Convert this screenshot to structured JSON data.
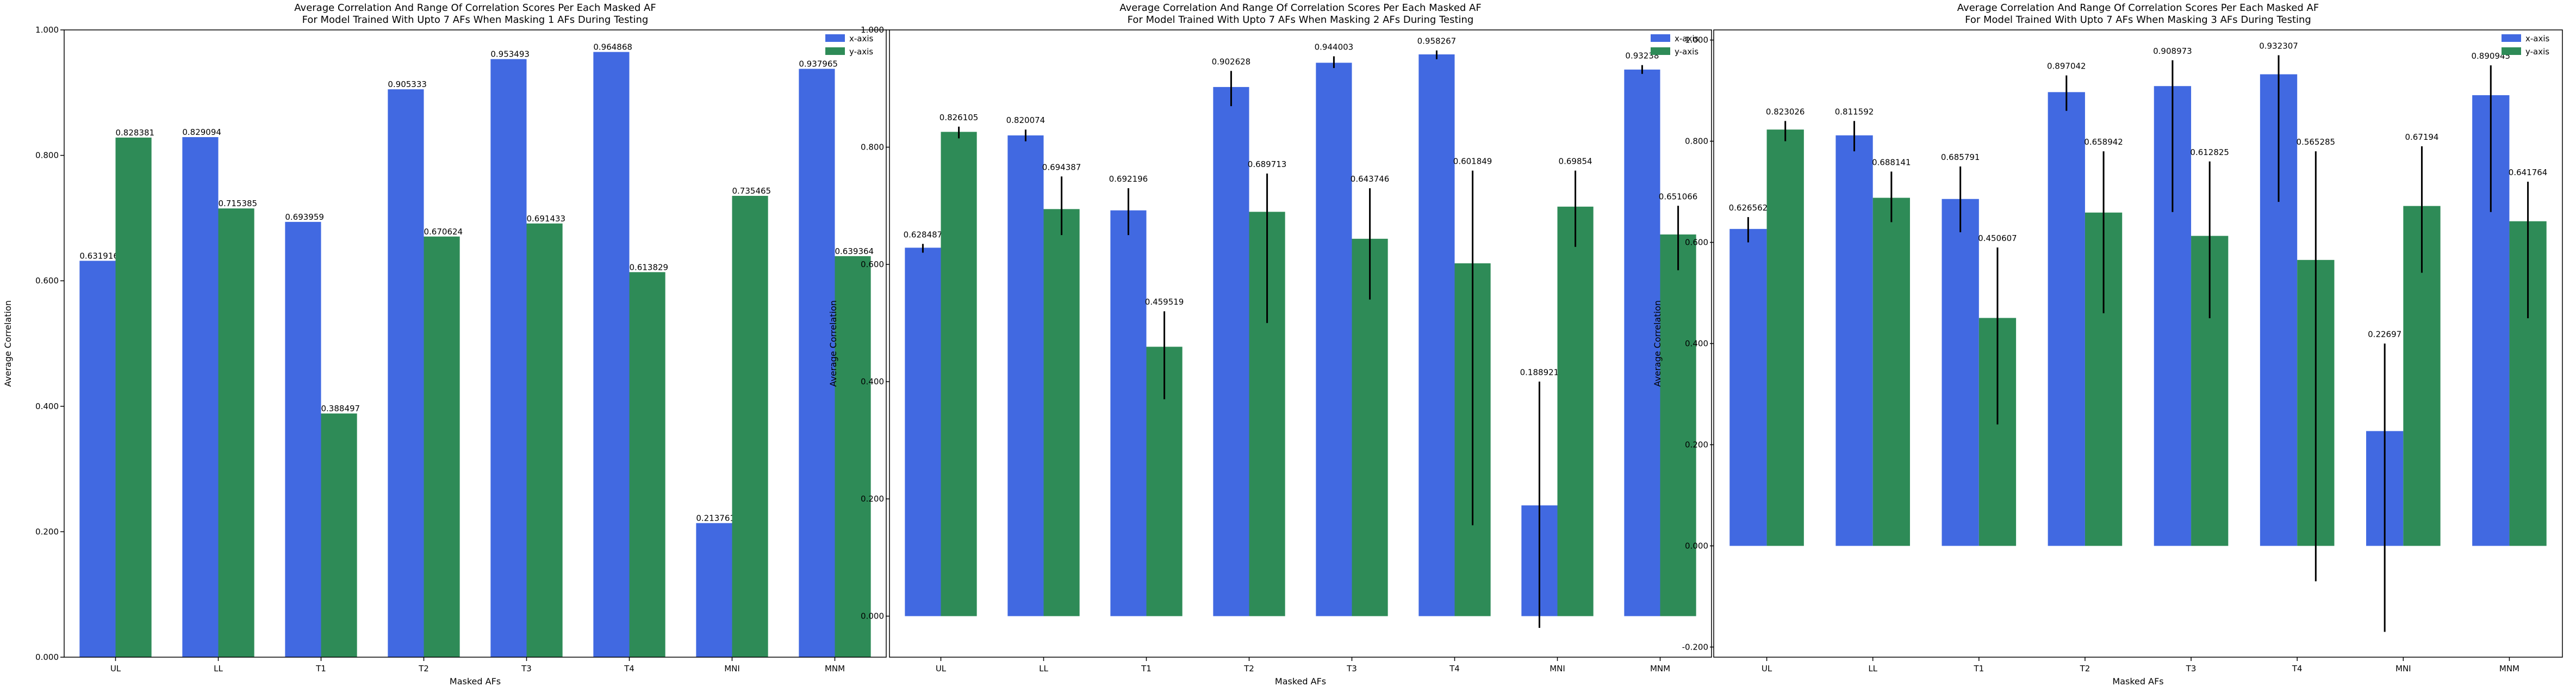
{
  "colors": {
    "x_axis": "#4169E1",
    "y_axis": "#2E8B57",
    "error_bar": "#000000"
  },
  "chart_data": [
    {
      "type": "bar",
      "title": "Average Correlation And Range Of Correlation Scores Per Each Masked AF\nFor Model Trained With Upto 7 AFs When Masking 1 AFs During Testing",
      "xlabel": "Masked AFs",
      "ylabel": "Average Correlation",
      "ylim": [
        0.0,
        1.0
      ],
      "yticks": [
        0.0,
        0.2,
        0.4,
        0.6,
        0.8,
        1.0
      ],
      "ytick_labels": [
        "0.000",
        "0.200",
        "0.400",
        "0.600",
        "0.800",
        "1.000"
      ],
      "categories": [
        "UL",
        "LL",
        "T1",
        "T2",
        "T3",
        "T4",
        "MNI",
        "MNM"
      ],
      "legend_position": "top-right",
      "series": [
        {
          "name": "x-axis",
          "values": [
            0.631916,
            0.829094,
            0.693959,
            0.905333,
            0.953493,
            0.964868,
            0.213761,
            0.937965
          ],
          "labels": [
            "0.631916",
            "0.829094",
            "0.693959",
            "0.905333",
            "0.953493",
            "0.964868",
            "0.213761",
            "0.937965"
          ]
        },
        {
          "name": "y-axis",
          "values": [
            0.828381,
            0.715385,
            0.388497,
            0.670624,
            0.691433,
            0.613829,
            0.735465,
            0.639364
          ],
          "labels": [
            "0.828381",
            "0.715385",
            "0.388497",
            "0.670624",
            "0.691433",
            "0.613829",
            "0.735465",
            "0.639364"
          ]
        }
      ]
    },
    {
      "type": "bar",
      "title": "Average Correlation And Range Of Correlation Scores Per Each Masked AF\nFor Model Trained With Upto 7 AFs When Masking 2 AFs During Testing",
      "xlabel": "Masked AFs",
      "ylabel": "Average Correlation",
      "ylim": [
        -0.07,
        1.0
      ],
      "yticks": [
        0.0,
        0.2,
        0.4,
        0.6,
        0.8,
        1.0
      ],
      "ytick_labels": [
        "0.000",
        "0.200",
        "0.400",
        "0.600",
        "0.800",
        "1.000"
      ],
      "categories": [
        "UL",
        "LL",
        "T1",
        "T2",
        "T3",
        "T4",
        "MNI",
        "MNM"
      ],
      "legend_position": "top-right",
      "series": [
        {
          "name": "x-axis",
          "values": [
            0.628487,
            0.820074,
            0.692196,
            0.902628,
            0.944003,
            0.958267,
            0.188921,
            0.93238
          ],
          "labels": [
            "0.628487",
            "0.820074",
            "0.692196",
            "0.902628",
            "0.944003",
            "0.958267",
            "0.188921",
            "0.93238"
          ],
          "err_low": [
            0.62,
            0.81,
            0.65,
            0.87,
            0.935,
            0.95,
            -0.02,
            0.925
          ],
          "err_high": [
            0.635,
            0.83,
            0.73,
            0.93,
            0.955,
            0.965,
            0.4,
            0.94
          ]
        },
        {
          "name": "y-axis",
          "values": [
            0.826105,
            0.694387,
            0.459519,
            0.689713,
            0.643746,
            0.601849,
            0.69854,
            0.651066
          ],
          "labels": [
            "0.826105",
            "0.694387",
            "0.459519",
            "0.689713",
            "0.643746",
            "0.601849",
            "0.69854",
            "0.651066"
          ],
          "err_low": [
            0.815,
            0.65,
            0.37,
            0.5,
            0.54,
            0.155,
            0.63,
            0.59
          ],
          "err_high": [
            0.835,
            0.75,
            0.52,
            0.755,
            0.73,
            0.76,
            0.76,
            0.7
          ]
        }
      ]
    },
    {
      "type": "bar",
      "title": "Average Correlation And Range Of Correlation Scores Per Each Masked AF\nFor Model Trained With Upto 7 AFs When Masking 3 AFs During Testing",
      "xlabel": "Masked AFs",
      "ylabel": "Average Correlation",
      "ylim": [
        -0.22,
        1.02
      ],
      "yticks": [
        -0.2,
        0.0,
        0.2,
        0.4,
        0.6,
        0.8,
        1.0
      ],
      "ytick_labels": [
        "-0.200",
        "0.000",
        "0.200",
        "0.400",
        "0.600",
        "0.800",
        "1.000"
      ],
      "categories": [
        "UL",
        "LL",
        "T1",
        "T2",
        "T3",
        "T4",
        "MNI",
        "MNM"
      ],
      "legend_position": "top-right",
      "series": [
        {
          "name": "x-axis",
          "values": [
            0.626562,
            0.811592,
            0.685791,
            0.897042,
            0.908973,
            0.932307,
            0.22697,
            0.890945
          ],
          "labels": [
            "0.626562",
            "0.811592",
            "0.685791",
            "0.897042",
            "0.908973",
            "0.932307",
            "0.22697",
            "0.890945"
          ],
          "err_low": [
            0.6,
            0.78,
            0.62,
            0.86,
            0.66,
            0.68,
            -0.17,
            0.66
          ],
          "err_high": [
            0.65,
            0.84,
            0.75,
            0.93,
            0.96,
            0.97,
            0.4,
            0.95
          ]
        },
        {
          "name": "y-axis",
          "values": [
            0.823026,
            0.688141,
            0.450607,
            0.658942,
            0.612825,
            0.565285,
            0.67194,
            0.641764
          ],
          "labels": [
            "0.823026",
            "0.688141",
            "0.450607",
            "0.658942",
            "0.612825",
            "0.565285",
            "0.67194",
            "0.641764"
          ],
          "err_low": [
            0.8,
            0.64,
            0.24,
            0.46,
            0.45,
            -0.07,
            0.54,
            0.45
          ],
          "err_high": [
            0.84,
            0.74,
            0.59,
            0.78,
            0.76,
            0.78,
            0.79,
            0.72
          ]
        }
      ]
    }
  ]
}
